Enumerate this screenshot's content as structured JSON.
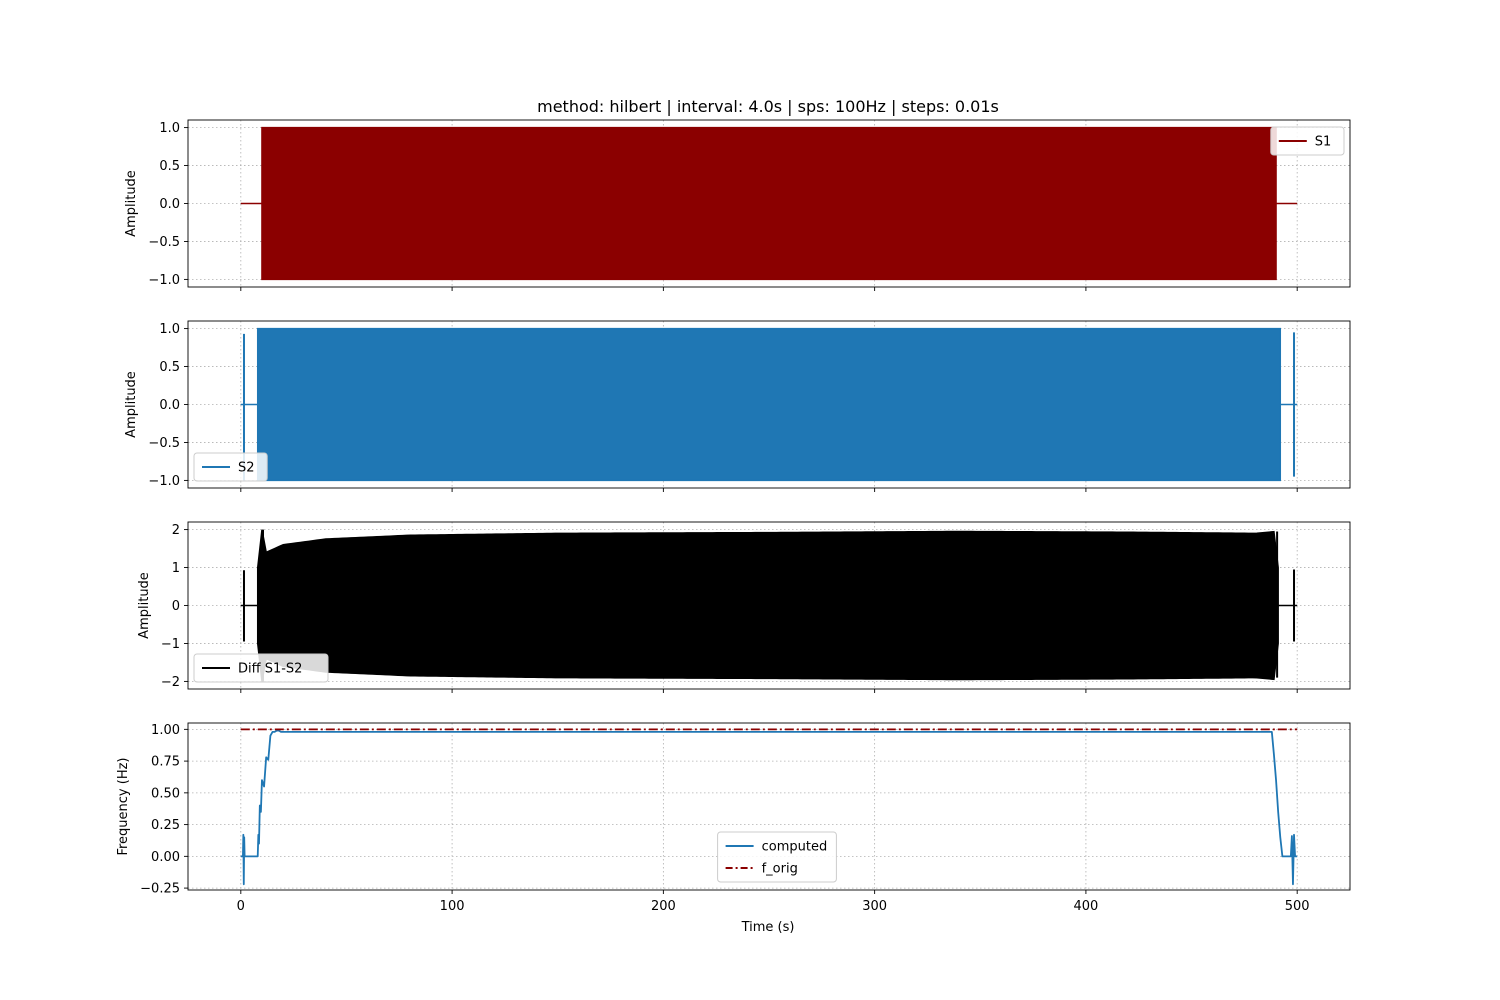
{
  "figure": {
    "title": "method: hilbert | interval: 4.0s  |  sps: 100Hz  |  steps: 0.01s",
    "xlabel": "Time (s)"
  },
  "chart_data": [
    {
      "type": "line",
      "ylabel": "Amplitude",
      "xlim": [
        -25,
        525
      ],
      "ylim": [
        -1.1,
        1.1
      ],
      "xticks": [
        0,
        100,
        200,
        300,
        400,
        500
      ],
      "yticks": [
        -1.0,
        -0.5,
        0.0,
        0.5,
        1.0
      ],
      "ytick_labels": [
        "−1.0",
        "−0.5",
        "0.0",
        "0.5",
        "1.0"
      ],
      "grid": true,
      "legend": {
        "placement": "upper right",
        "entries": [
          {
            "label": "S1",
            "color": "#8b0000",
            "style": "solid"
          }
        ]
      },
      "series": [
        {
          "name": "S1",
          "color": "#8b0000",
          "kind": "oscillation-band",
          "x_range": [
            0,
            500
          ],
          "active_x": [
            10,
            490
          ],
          "amplitude": 1.0,
          "outside_value": 0.0
        }
      ]
    },
    {
      "type": "line",
      "ylabel": "Amplitude",
      "xlim": [
        -25,
        525
      ],
      "ylim": [
        -1.1,
        1.1
      ],
      "xticks": [
        0,
        100,
        200,
        300,
        400,
        500
      ],
      "yticks": [
        -1.0,
        -0.5,
        0.0,
        0.5,
        1.0
      ],
      "ytick_labels": [
        "−1.0",
        "−0.5",
        "0.0",
        "0.5",
        "1.0"
      ],
      "grid": true,
      "legend": {
        "placement": "lower left",
        "entries": [
          {
            "label": "S2",
            "color": "#1f77b4",
            "style": "solid"
          }
        ]
      },
      "series": [
        {
          "name": "S2",
          "color": "#1f77b4",
          "kind": "oscillation-band",
          "x_range": [
            0,
            500
          ],
          "active_x": [
            8,
            492
          ],
          "amplitude": 1.0,
          "outside_value": 0.0,
          "spikes": [
            {
              "x": 1.5,
              "min": -1.0,
              "max": 0.93
            },
            {
              "x": 498.5,
              "min": -0.95,
              "max": 0.95
            }
          ]
        }
      ]
    },
    {
      "type": "line",
      "ylabel": "Amplitude",
      "xlim": [
        -25,
        525
      ],
      "ylim": [
        -2.2,
        2.2
      ],
      "xticks": [
        0,
        100,
        200,
        300,
        400,
        500
      ],
      "yticks": [
        -2,
        -1,
        0,
        1,
        2
      ],
      "ytick_labels": [
        "−2",
        "−1",
        "0",
        "1",
        "2"
      ],
      "grid": true,
      "legend": {
        "placement": "lower left",
        "entries": [
          {
            "label": "Diff S1-S2",
            "color": "#000000",
            "style": "solid"
          }
        ]
      },
      "series": [
        {
          "name": "Diff S1-S2",
          "color": "#000000",
          "kind": "oscillation-band",
          "x_range": [
            0,
            500
          ],
          "active_x": [
            8,
            491
          ],
          "outside_value": 0.0,
          "envelope": [
            [
              8,
              1.0
            ],
            [
              9,
              1.0
            ],
            [
              10,
              2.0
            ],
            [
              12,
              1.4
            ],
            [
              20,
              1.6
            ],
            [
              40,
              1.75
            ],
            [
              80,
              1.85
            ],
            [
              150,
              1.9
            ],
            [
              250,
              1.92
            ],
            [
              340,
              1.95
            ],
            [
              420,
              1.93
            ],
            [
              480,
              1.9
            ],
            [
              490,
              1.95
            ],
            [
              491,
              1.0
            ]
          ],
          "spikes": [
            {
              "x": 1.5,
              "min": -0.95,
              "max": 0.93
            },
            {
              "x": 10.5,
              "min": -2.0,
              "max": 2.0
            },
            {
              "x": 490.5,
              "min": -1.9,
              "max": 1.95
            },
            {
              "x": 498.5,
              "min": -0.95,
              "max": 0.95
            }
          ]
        }
      ]
    },
    {
      "type": "line",
      "ylabel": "Frequency (Hz)",
      "xlim": [
        -25,
        525
      ],
      "ylim": [
        -0.265,
        1.05
      ],
      "xticks": [
        0,
        100,
        200,
        300,
        400,
        500
      ],
      "xtick_labels": [
        "0",
        "100",
        "200",
        "300",
        "400",
        "500"
      ],
      "yticks": [
        -0.25,
        0.0,
        0.25,
        0.5,
        0.75,
        1.0
      ],
      "ytick_labels": [
        "−0.25",
        "0.00",
        "0.25",
        "0.50",
        "0.75",
        "1.00"
      ],
      "grid": true,
      "legend": {
        "placement": "lower center",
        "entries": [
          {
            "label": "computed",
            "color": "#1f77b4",
            "style": "solid"
          },
          {
            "label": "f_orig",
            "color": "#8b0000",
            "style": "dashdot"
          }
        ]
      },
      "series": [
        {
          "name": "computed",
          "color": "#1f77b4",
          "style": "solid",
          "x": [
            0,
            1,
            1.2,
            1.4,
            1.6,
            1.8,
            2,
            8,
            8.3,
            8.6,
            9,
            9.5,
            10,
            11,
            12,
            13,
            14,
            15,
            16,
            17,
            18,
            19,
            20,
            100,
            200,
            300,
            400,
            480,
            485,
            486,
            487,
            488,
            489,
            490,
            491,
            492,
            493,
            494,
            497,
            497.5,
            498,
            498.5,
            499,
            500
          ],
          "y": [
            0.0,
            0.0,
            0.17,
            -0.22,
            0.15,
            0.0,
            0.0,
            0.0,
            0.17,
            0.1,
            0.4,
            0.35,
            0.6,
            0.55,
            0.78,
            0.76,
            0.95,
            0.98,
            0.98,
            0.99,
            0.99,
            0.98,
            0.98,
            0.98,
            0.98,
            0.98,
            0.98,
            0.98,
            0.98,
            0.98,
            0.98,
            0.98,
            0.8,
            0.6,
            0.35,
            0.15,
            0.0,
            0.0,
            0.0,
            0.16,
            -0.22,
            0.17,
            0.0,
            0.0
          ]
        },
        {
          "name": "f_orig",
          "color": "#8b0000",
          "style": "dashdot",
          "x": [
            0,
            500
          ],
          "y": [
            1.0,
            1.0
          ]
        }
      ]
    }
  ]
}
